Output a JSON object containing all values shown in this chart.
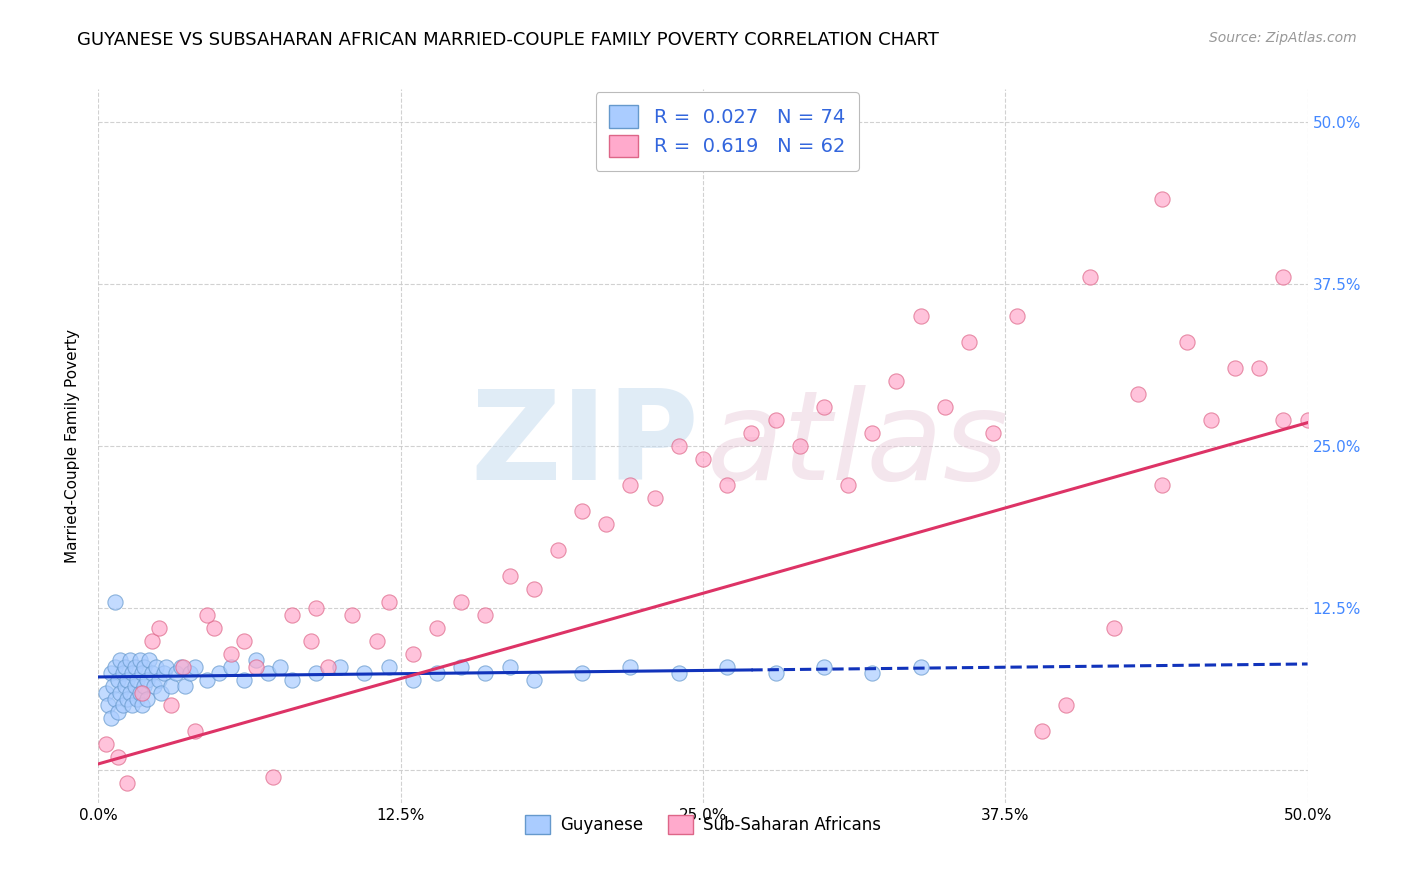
{
  "title": "GUYANESE VS SUBSAHARAN AFRICAN MARRIED-COUPLE FAMILY POVERTY CORRELATION CHART",
  "source": "Source: ZipAtlas.com",
  "ylabel": "Married-Couple Family Poverty",
  "xlim": [
    0.0,
    0.5
  ],
  "ylim": [
    -0.025,
    0.525
  ],
  "xtick_vals": [
    0.0,
    0.125,
    0.25,
    0.375,
    0.5
  ],
  "xtick_labels": [
    "0.0%",
    "12.5%",
    "25.0%",
    "37.5%",
    "50.0%"
  ],
  "ytick_vals": [
    0.0,
    0.125,
    0.25,
    0.375,
    0.5
  ],
  "ytick_right_labels": [
    "",
    "12.5%",
    "25.0%",
    "37.5%",
    "50.0%"
  ],
  "background_color": "#ffffff",
  "plot_bg_color": "#ffffff",
  "grid_color": "#cccccc",
  "guyanese_color": "#aaccff",
  "guyanese_edge_color": "#6699cc",
  "subsaharan_color": "#ffaacc",
  "subsaharan_edge_color": "#dd6688",
  "guyanese_line_color": "#1133bb",
  "subsaharan_line_color": "#dd3366",
  "R_guyanese": 0.027,
  "N_guyanese": 74,
  "R_subsaharan": 0.619,
  "N_subsaharan": 62,
  "legend_label_guyanese": "Guyanese",
  "legend_label_subsaharan": "Sub-Saharan Africans",
  "title_fontsize": 13,
  "axis_label_fontsize": 11,
  "tick_fontsize": 11,
  "source_fontsize": 10,
  "right_tick_color": "#4488ff",
  "scatter_size": 120,
  "scatter_alpha": 0.7,
  "guyanese_x": [
    0.003,
    0.004,
    0.005,
    0.005,
    0.006,
    0.007,
    0.007,
    0.008,
    0.008,
    0.009,
    0.009,
    0.01,
    0.01,
    0.011,
    0.011,
    0.012,
    0.012,
    0.013,
    0.013,
    0.014,
    0.014,
    0.015,
    0.015,
    0.016,
    0.016,
    0.017,
    0.017,
    0.018,
    0.018,
    0.019,
    0.019,
    0.02,
    0.02,
    0.021,
    0.022,
    0.023,
    0.024,
    0.025,
    0.026,
    0.027,
    0.028,
    0.03,
    0.032,
    0.034,
    0.036,
    0.038,
    0.04,
    0.045,
    0.05,
    0.055,
    0.06,
    0.065,
    0.07,
    0.075,
    0.08,
    0.09,
    0.1,
    0.11,
    0.12,
    0.13,
    0.14,
    0.15,
    0.16,
    0.17,
    0.18,
    0.2,
    0.22,
    0.24,
    0.26,
    0.28,
    0.3,
    0.32,
    0.34,
    0.007
  ],
  "guyanese_y": [
    0.06,
    0.05,
    0.075,
    0.04,
    0.065,
    0.08,
    0.055,
    0.07,
    0.045,
    0.085,
    0.06,
    0.075,
    0.05,
    0.08,
    0.065,
    0.07,
    0.055,
    0.085,
    0.06,
    0.075,
    0.05,
    0.08,
    0.065,
    0.07,
    0.055,
    0.085,
    0.06,
    0.075,
    0.05,
    0.08,
    0.065,
    0.07,
    0.055,
    0.085,
    0.075,
    0.065,
    0.08,
    0.07,
    0.06,
    0.075,
    0.08,
    0.065,
    0.075,
    0.08,
    0.065,
    0.075,
    0.08,
    0.07,
    0.075,
    0.08,
    0.07,
    0.085,
    0.075,
    0.08,
    0.07,
    0.075,
    0.08,
    0.075,
    0.08,
    0.07,
    0.075,
    0.08,
    0.075,
    0.08,
    0.07,
    0.075,
    0.08,
    0.075,
    0.08,
    0.075,
    0.08,
    0.075,
    0.08,
    0.13
  ],
  "subsaharan_x": [
    0.003,
    0.008,
    0.012,
    0.018,
    0.022,
    0.03,
    0.035,
    0.04,
    0.048,
    0.055,
    0.06,
    0.065,
    0.072,
    0.08,
    0.088,
    0.095,
    0.105,
    0.115,
    0.12,
    0.13,
    0.14,
    0.15,
    0.16,
    0.17,
    0.18,
    0.19,
    0.2,
    0.21,
    0.22,
    0.23,
    0.24,
    0.25,
    0.26,
    0.27,
    0.28,
    0.29,
    0.3,
    0.31,
    0.32,
    0.33,
    0.34,
    0.35,
    0.36,
    0.37,
    0.38,
    0.39,
    0.4,
    0.41,
    0.42,
    0.43,
    0.44,
    0.45,
    0.46,
    0.47,
    0.48,
    0.49,
    0.5,
    0.025,
    0.045,
    0.09,
    0.44,
    0.49
  ],
  "subsaharan_y": [
    0.02,
    0.01,
    -0.01,
    0.06,
    0.1,
    0.05,
    0.08,
    0.03,
    0.11,
    0.09,
    0.1,
    0.08,
    -0.005,
    0.12,
    0.1,
    0.08,
    0.12,
    0.1,
    0.13,
    0.09,
    0.11,
    0.13,
    0.12,
    0.15,
    0.14,
    0.17,
    0.2,
    0.19,
    0.22,
    0.21,
    0.25,
    0.24,
    0.22,
    0.26,
    0.27,
    0.25,
    0.28,
    0.22,
    0.26,
    0.3,
    0.35,
    0.28,
    0.33,
    0.26,
    0.35,
    0.03,
    0.05,
    0.38,
    0.11,
    0.29,
    0.22,
    0.33,
    0.27,
    0.31,
    0.31,
    0.27,
    0.27,
    0.11,
    0.12,
    0.125,
    0.44,
    0.38
  ],
  "guyanese_line_x": [
    0.0,
    0.5
  ],
  "guyanese_line_y": [
    0.072,
    0.082
  ],
  "subsaharan_line_x": [
    0.0,
    0.5
  ],
  "subsaharan_line_y": [
    0.005,
    0.268
  ]
}
